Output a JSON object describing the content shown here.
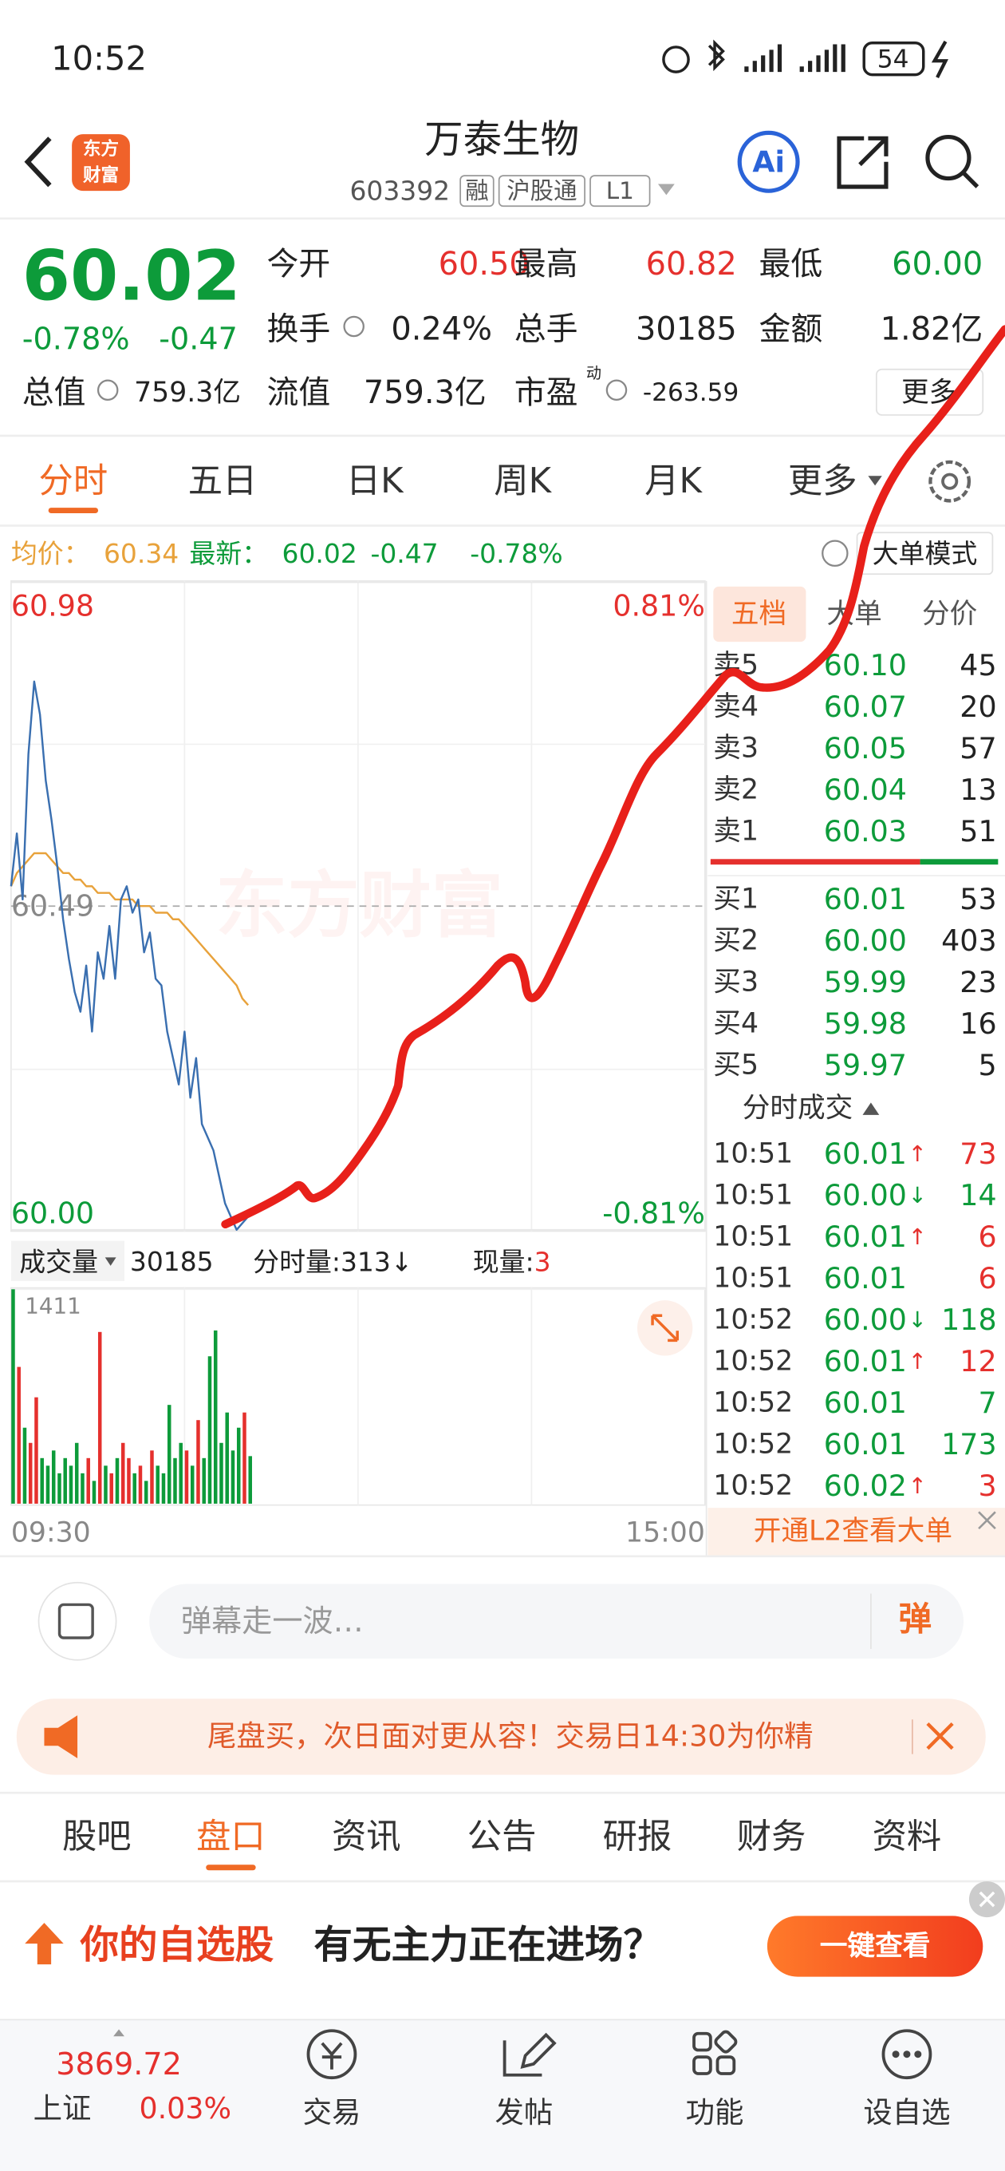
{
  "status_bar": {
    "time": "10:52",
    "battery": "54"
  },
  "header": {
    "logo": [
      "东方",
      "财富"
    ],
    "title": "万泰生物",
    "code": "603392",
    "tags": [
      "融",
      "沪股通",
      "L1"
    ],
    "ai": "Ai"
  },
  "quote": {
    "price": "60.02",
    "change_pct": "-0.78%",
    "change": "-0.47",
    "grid": [
      {
        "label": "今开",
        "value": "60.50",
        "color": "#e5302d"
      },
      {
        "label": "最高",
        "value": "60.82",
        "color": "#e5302d"
      },
      {
        "label": "最低",
        "value": "60.00",
        "color": "#0d9b3a"
      },
      {
        "label": "换手",
        "value": "0.24%",
        "color": "#222222"
      },
      {
        "label": "总手",
        "value": "30185",
        "color": "#222222"
      },
      {
        "label": "金额",
        "value": "1.82亿",
        "color": "#222222"
      }
    ],
    "stats": [
      {
        "label": "总值",
        "value": "759.3亿"
      },
      {
        "label": "流值",
        "value": "759.3亿"
      },
      {
        "label": "市盈",
        "sup": "动",
        "value": "-263.59"
      }
    ],
    "more": "更多"
  },
  "period_tabs": {
    "items": [
      "分时",
      "五日",
      "日K",
      "周K",
      "月K",
      "更多"
    ],
    "active": 0
  },
  "info": {
    "avg_label": "均价：",
    "avg": "60.34",
    "latest_label": "最新：",
    "latest": "60.02",
    "change": "-0.47",
    "change_pct": "-0.78%",
    "mode": "大单模式"
  },
  "chart_data": [
    {
      "type": "line",
      "watermark": "东方财富",
      "x": [
        "09:30",
        "09:32",
        "09:34",
        "09:36",
        "09:38",
        "09:40",
        "09:42",
        "09:44",
        "09:46",
        "09:48",
        "09:50",
        "09:52",
        "09:54",
        "09:56",
        "09:58",
        "10:00",
        "10:02",
        "10:04",
        "10:06",
        "10:08",
        "10:10",
        "10:12",
        "10:14",
        "10:16",
        "10:18",
        "10:20",
        "10:22",
        "10:24",
        "10:26",
        "10:28",
        "10:30",
        "10:32",
        "10:34",
        "10:36",
        "10:38",
        "10:40",
        "10:42",
        "10:44",
        "10:46",
        "10:48",
        "10:50",
        "10:52"
      ],
      "xlim": [
        "09:30",
        "15:00"
      ],
      "ylim": [
        60.0,
        60.98
      ],
      "yticks": [
        60.98,
        60.49,
        {
          "value": 60.0,
          "label": "60.00"
        }
      ],
      "y2lim": [
        -0.81,
        0.81
      ],
      "y2ticks": [
        {
          "value": 0.81,
          "label": "0.81%"
        },
        {
          "value": -0.81,
          "label": "-0.81%"
        }
      ],
      "series": [
        {
          "name": "均价：",
          "color": "#e8a23b",
          "values": [
            60.52,
            60.54,
            60.55,
            60.56,
            60.57,
            60.57,
            60.57,
            60.56,
            60.55,
            60.54,
            60.54,
            60.53,
            60.53,
            60.52,
            60.52,
            60.51,
            60.51,
            60.51,
            60.5,
            60.5,
            60.5,
            60.5,
            60.49,
            60.49,
            60.49,
            60.48,
            60.48,
            60.48,
            60.47,
            60.47,
            60.46,
            60.45,
            60.44,
            60.43,
            60.42,
            60.41,
            60.4,
            60.39,
            60.38,
            60.37,
            60.35,
            60.34
          ]
        },
        {
          "name": "最新：",
          "color": "#3a6fb0",
          "values": [
            60.52,
            60.6,
            60.5,
            60.72,
            60.83,
            60.78,
            60.68,
            60.62,
            60.55,
            60.47,
            60.41,
            60.36,
            60.33,
            60.4,
            60.3,
            60.42,
            60.38,
            60.46,
            60.38,
            60.5,
            60.52,
            60.48,
            60.5,
            60.42,
            60.45,
            60.38,
            60.37,
            60.3,
            60.26,
            60.22,
            60.3,
            60.2,
            60.26,
            60.16,
            60.14,
            60.12,
            60.08,
            60.04,
            60.02,
            60.0,
            60.01,
            60.02
          ]
        }
      ]
    },
    {
      "type": "bar",
      "label": "成交量",
      "total": "30185",
      "last_label": "分时量:",
      "last": "313",
      "last_arrow": "↓",
      "now_label": "现量:",
      "now": "3",
      "x": [
        "09:30",
        "09:32",
        "09:34",
        "09:36",
        "09:38",
        "09:40",
        "09:42",
        "09:44",
        "09:46",
        "09:48",
        "09:50",
        "09:52",
        "09:54",
        "09:56",
        "09:58",
        "10:00",
        "10:02",
        "10:04",
        "10:06",
        "10:08",
        "10:10",
        "10:12",
        "10:14",
        "10:16",
        "10:18",
        "10:20",
        "10:22",
        "10:24",
        "10:26",
        "10:28",
        "10:30",
        "10:32",
        "10:34",
        "10:36",
        "10:38",
        "10:40",
        "10:42",
        "10:44",
        "10:46",
        "10:48",
        "10:50",
        "10:52"
      ],
      "xlim": [
        "09:30",
        "15:00"
      ],
      "xticks": [
        "09:30",
        "15:00"
      ],
      "ylim": [
        0,
        1411
      ],
      "yticks": [
        1411
      ],
      "values": [
        1411,
        900,
        500,
        400,
        700,
        300,
        250,
        350,
        200,
        300,
        250,
        400,
        200,
        300,
        150,
        1130,
        250,
        200,
        300,
        400,
        300,
        200,
        250,
        150,
        350,
        250,
        200,
        650,
        300,
        400,
        350,
        250,
        550,
        300,
        970,
        1140,
        400,
        600,
        350,
        500,
        600,
        313
      ],
      "colors": [
        "#0d9b3a",
        "#e5302d",
        "#0d9b3a",
        "#e5302d",
        "#e5302d",
        "#0d9b3a",
        "#0d9b3a",
        "#0d9b3a",
        "#0d9b3a",
        "#0d9b3a",
        "#0d9b3a",
        "#0d9b3a",
        "#0d9b3a",
        "#e5302d",
        "#0d9b3a",
        "#e5302d",
        "#0d9b3a",
        "#e5302d",
        "#0d9b3a",
        "#e5302d",
        "#e5302d",
        "#0d9b3a",
        "#e5302d",
        "#0d9b3a",
        "#e5302d",
        "#0d9b3a",
        "#0d9b3a",
        "#0d9b3a",
        "#0d9b3a",
        "#0d9b3a",
        "#e5302d",
        "#0d9b3a",
        "#e5302d",
        "#0d9b3a",
        "#0d9b3a",
        "#0d9b3a",
        "#0d9b3a",
        "#0d9b3a",
        "#0d9b3a",
        "#0d9b3a",
        "#e5302d",
        "#0d9b3a"
      ]
    }
  ],
  "order_book": {
    "tabs": [
      "五档",
      "大单",
      "分价"
    ],
    "asks": [
      [
        "卖5",
        "60.10",
        "45"
      ],
      [
        "卖4",
        "60.07",
        "20"
      ],
      [
        "卖3",
        "60.05",
        "57"
      ],
      [
        "卖2",
        "60.04",
        "13"
      ],
      [
        "卖1",
        "60.03",
        "51"
      ]
    ],
    "bids": [
      [
        "买1",
        "60.01",
        "53"
      ],
      [
        "买2",
        "60.00",
        "403"
      ],
      [
        "买3",
        "59.99",
        "23"
      ],
      [
        "买4",
        "59.98",
        "16"
      ],
      [
        "买5",
        "59.97",
        "5"
      ]
    ],
    "trades_title": "分时成交",
    "trades": [
      {
        "time": "10:51",
        "price": "60.01",
        "arrow": "↑",
        "volume": "73",
        "color": "#e5302d"
      },
      {
        "time": "10:51",
        "price": "60.00",
        "arrow": "↓",
        "volume": "14",
        "color": "#0d9b3a"
      },
      {
        "time": "10:51",
        "price": "60.01",
        "arrow": "↑",
        "volume": "6",
        "color": "#e5302d"
      },
      {
        "time": "10:51",
        "price": "60.01",
        "volume": "6",
        "color": "#e5302d"
      },
      {
        "time": "10:52",
        "price": "60.00",
        "arrow": "↓",
        "volume": "118",
        "color": "#0d9b3a"
      },
      {
        "time": "10:52",
        "price": "60.01",
        "arrow": "↑",
        "volume": "12",
        "color": "#e5302d"
      },
      {
        "time": "10:52",
        "price": "60.01",
        "volume": "7",
        "color": "#0d9b3a"
      },
      {
        "time": "10:52",
        "price": "60.01",
        "volume": "173",
        "color": "#0d9b3a"
      },
      {
        "time": "10:52",
        "price": "60.02",
        "arrow": "↑",
        "volume": "3",
        "color": "#e5302d"
      }
    ],
    "l2": "开通L2查看大单"
  },
  "input": {
    "placeholder": "弹幕走一波…",
    "send": "弹"
  },
  "banner": {
    "text": "尾盘买，次日面对更从容！交易日14:30为你精"
  },
  "info_tabs": {
    "items": [
      "股吧",
      "盘口",
      "资讯",
      "公告",
      "研报",
      "财务",
      "资料"
    ],
    "active": 1
  },
  "ad": {
    "highlight": "你的自选股",
    "text": "有无主力正在进场？",
    "button": "一键查看"
  },
  "bottom_nav": {
    "index_value": "3869.72",
    "index_name": "上证",
    "index_change": "0.03%",
    "items": [
      "交易",
      "发帖",
      "功能",
      "设自选"
    ]
  }
}
